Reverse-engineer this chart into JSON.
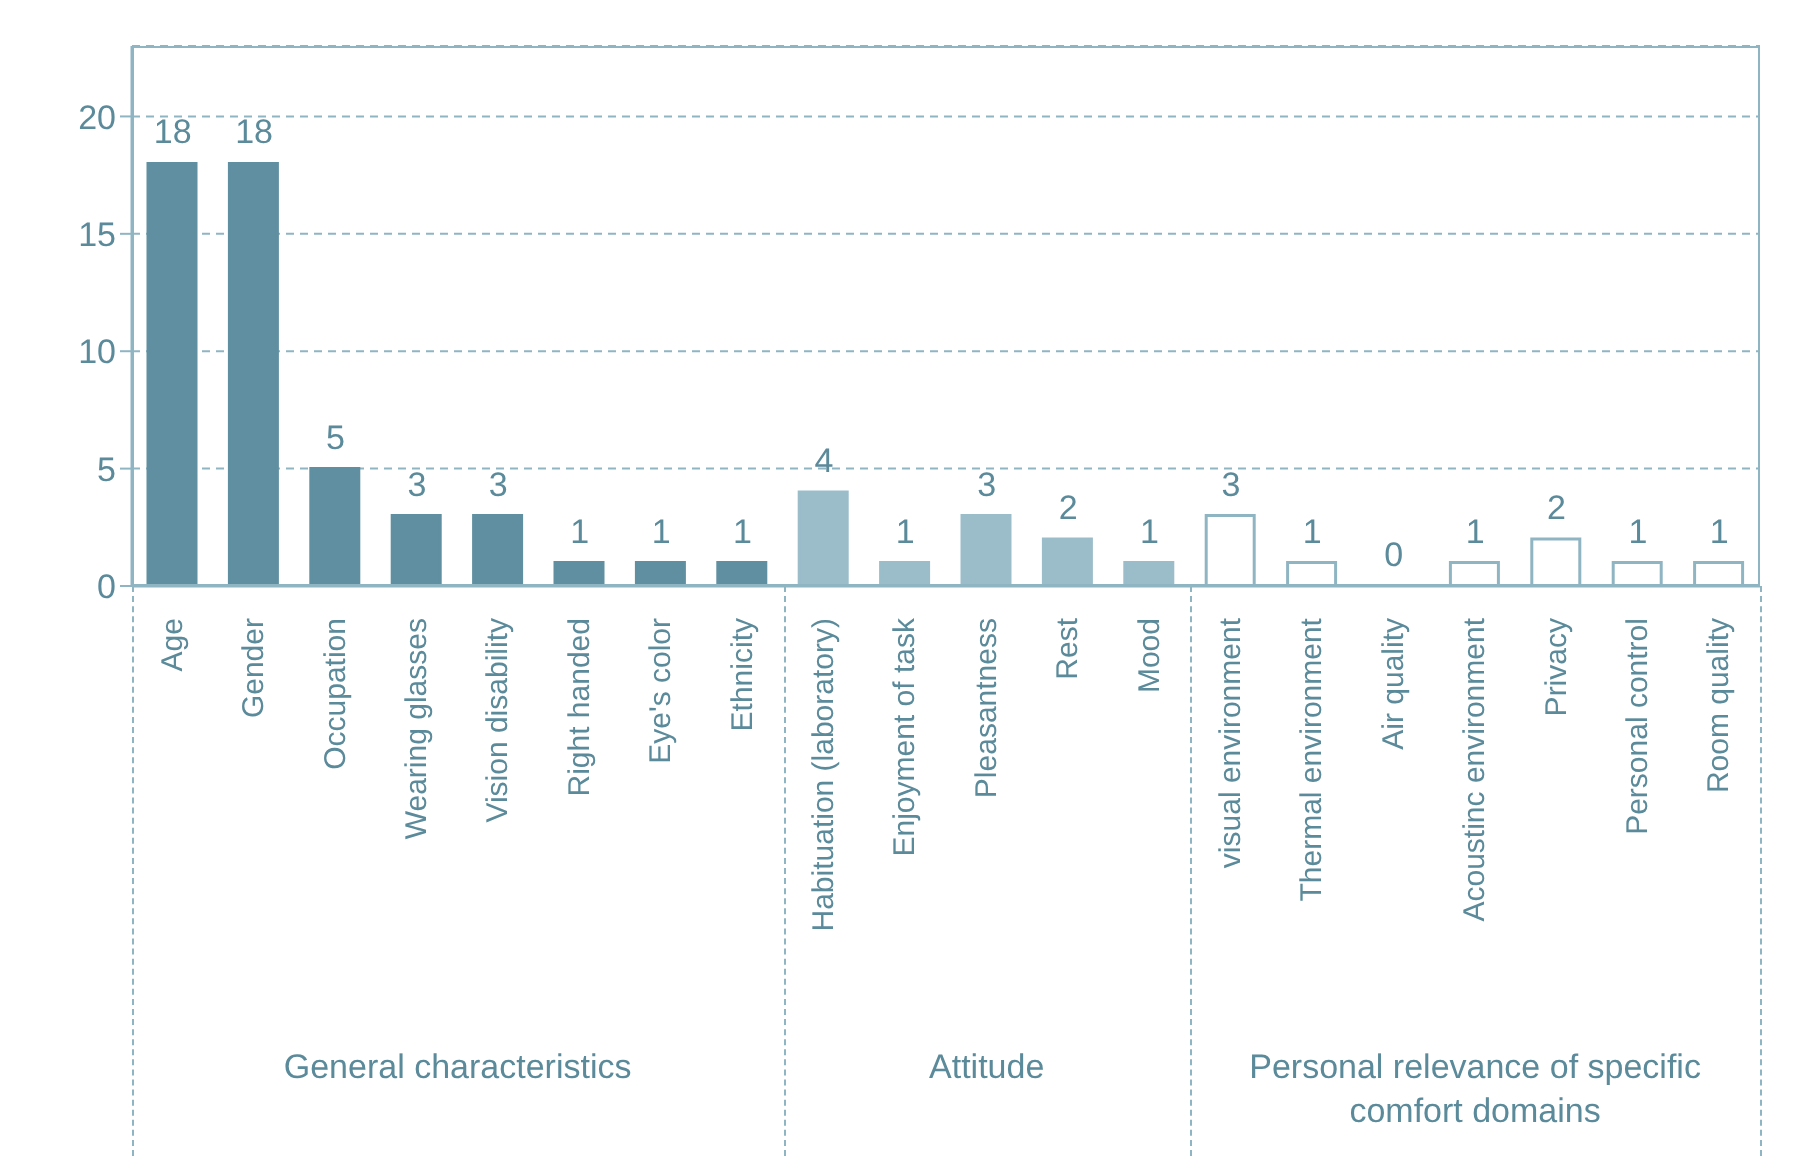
{
  "chart_data": {
    "type": "bar",
    "categories": [
      "Age",
      "Gender",
      "Occupation",
      "Wearing glasses",
      "Vision disability",
      "Right handed",
      "Eye's color",
      "Ethnicity",
      "Habituation (laboratory)",
      "Enjoyment of task",
      "Pleasantness",
      "Rest",
      "Mood",
      "visual environment",
      "Thermal environment",
      "Air quality",
      "Acoustinc environment",
      "Privacy",
      "Personal control",
      "Room quality"
    ],
    "values": [
      18,
      18,
      5,
      3,
      3,
      1,
      1,
      1,
      4,
      1,
      3,
      2,
      1,
      3,
      1,
      0,
      1,
      2,
      1,
      1
    ],
    "colors": [
      "#5f8fa0",
      "#5f8fa0",
      "#5f8fa0",
      "#5f8fa0",
      "#5f8fa0",
      "#5f8fa0",
      "#5f8fa0",
      "#5f8fa0",
      "#9bbdca",
      "#9bbdca",
      "#9bbdca",
      "#9bbdca",
      "#9bbdca",
      "#ffffff",
      "#ffffff",
      "#ffffff",
      "#ffffff",
      "#ffffff",
      "#ffffff",
      "#ffffff"
    ],
    "ylim": [
      0,
      23
    ],
    "yticks": [
      0,
      5,
      10,
      15,
      20
    ],
    "grid": "y",
    "data_labels": true,
    "annotations": [
      "General characteristics",
      "Attitude",
      "Personal relevance of specific comfort domains"
    ]
  }
}
